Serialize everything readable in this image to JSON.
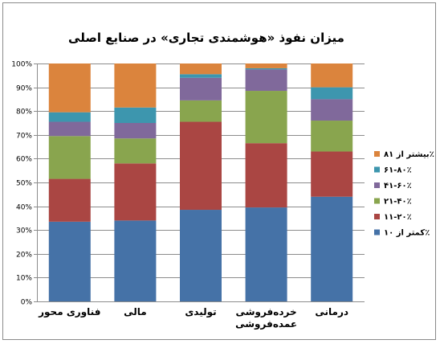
{
  "chart_data": {
    "type": "bar",
    "stacked": true,
    "percent_stacked": true,
    "title": "میزان نفوذ «هوشمندی تجاری» در صنایع اصلی",
    "xlabel": "",
    "ylabel": "",
    "ylim": [
      0,
      100
    ],
    "y_ticks": [
      "0%",
      "10%",
      "20%",
      "30%",
      "40%",
      "50%",
      "60%",
      "70%",
      "80%",
      "90%",
      "100%"
    ],
    "grid": true,
    "legend_position": "right",
    "categories": [
      [
        "فناوری محور"
      ],
      [
        "مالی"
      ],
      [
        "تولیدی"
      ],
      [
        "خرده‌فروشی",
        "عمده‌فروشی"
      ],
      [
        "درمانی"
      ]
    ],
    "series": [
      {
        "name": "کمتر از ۱۰٪",
        "color": "#4572A7",
        "values": [
          33.5,
          34,
          38.5,
          39.5,
          44
        ]
      },
      {
        "name": "۱۱-۲۰٪",
        "color": "#AA4643",
        "values": [
          18,
          24,
          37,
          27,
          19
        ]
      },
      {
        "name": "۲۱-۴۰٪",
        "color": "#89A54E",
        "values": [
          18,
          10.5,
          9,
          22,
          13
        ]
      },
      {
        "name": "۴۱-۶۰٪",
        "color": "#80699B",
        "values": [
          6,
          6.5,
          9.5,
          9,
          9
        ]
      },
      {
        "name": "۶۱-۸۰٪",
        "color": "#3D96AE",
        "values": [
          4,
          6.5,
          1.5,
          0.5,
          5
        ]
      },
      {
        "name": "بیشتر از ۸۱٪",
        "color": "#DB843D",
        "values": [
          20.5,
          18.5,
          4.5,
          2,
          10
        ]
      }
    ]
  }
}
